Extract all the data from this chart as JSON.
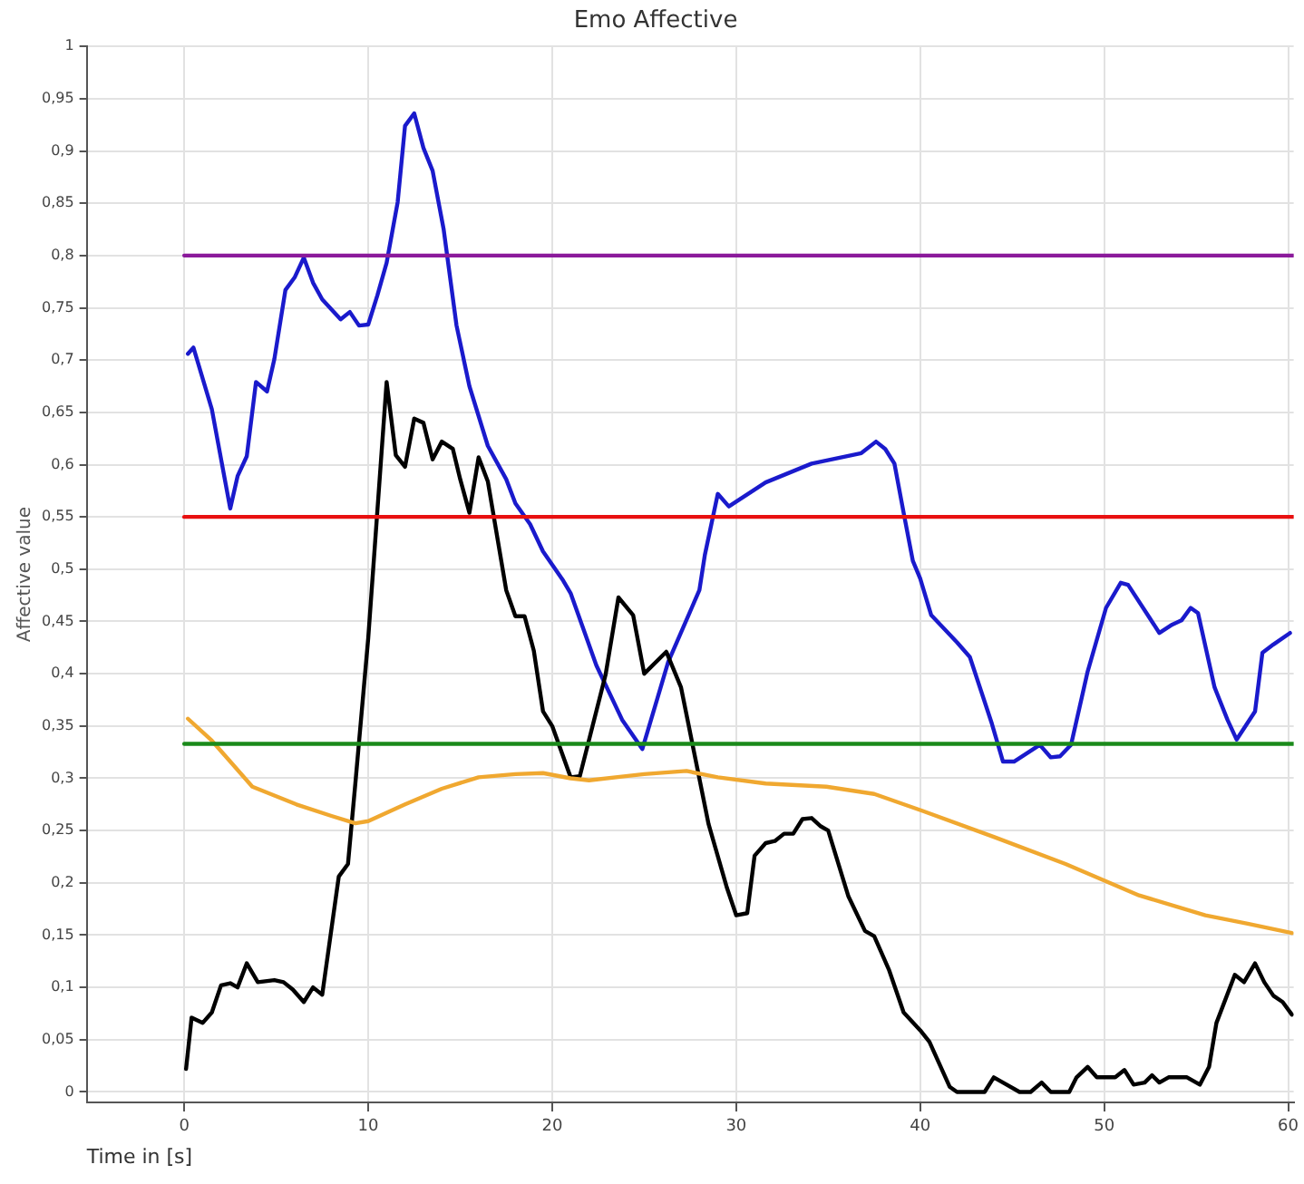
{
  "chart_data": {
    "type": "line",
    "title": "Emo Affective",
    "xlabel": "Time in [s]",
    "ylabel": "Affective value",
    "xlim": [
      -5.3,
      60.3
    ],
    "xticks": [
      0,
      10,
      20,
      30,
      40,
      50,
      60
    ],
    "ylim": [
      -0.01,
      1
    ],
    "yticks": [
      0,
      {
        "value": 0.05,
        "label": "0,05"
      },
      {
        "value": 0.1,
        "label": "0,1"
      },
      {
        "value": 0.15,
        "label": "0,15"
      },
      {
        "value": 0.2,
        "label": "0,2"
      },
      {
        "value": 0.25,
        "label": "0,25"
      },
      {
        "value": 0.3,
        "label": "0,3"
      },
      {
        "value": 0.35,
        "label": "0,35"
      },
      {
        "value": 0.4,
        "label": "0,4"
      },
      {
        "value": 0.45,
        "label": "0,45"
      },
      {
        "value": 0.5,
        "label": "0,5"
      },
      {
        "value": 0.55,
        "label": "0,55"
      },
      {
        "value": 0.6,
        "label": "0,6"
      },
      {
        "value": 0.65,
        "label": "0,65"
      },
      {
        "value": 0.7,
        "label": "0,7"
      },
      {
        "value": 0.75,
        "label": "0,75"
      },
      {
        "value": 0.8,
        "label": "0,8"
      },
      {
        "value": 0.85,
        "label": "0,85"
      },
      {
        "value": 0.9,
        "label": "0,9"
      },
      {
        "value": 0.95,
        "label": "0,95"
      },
      1
    ],
    "grid": true,
    "legend": false,
    "marker": "none",
    "line_style": "solid",
    "series": [
      {
        "color": "#8b1a9b",
        "x": [
          0,
          60.3
        ],
        "values": [
          0.8,
          0.8
        ]
      },
      {
        "color": "#e81010",
        "x": [
          0,
          60.3
        ],
        "values": [
          0.55,
          0.55
        ]
      },
      {
        "color": "#1a8a1a",
        "x": [
          0,
          60.3
        ],
        "values": [
          0.333,
          0.333
        ]
      },
      {
        "color": "#f0a830",
        "x": [
          0.2,
          1.5,
          3.7,
          6.1,
          8.0,
          9.3,
          10.0,
          12,
          14,
          16,
          18,
          19.5,
          21,
          22,
          24,
          25,
          27.3,
          29.0,
          31.6,
          34.9,
          37.5,
          40.1,
          44.0,
          47.9,
          51.9,
          55.5,
          57.8,
          60.2
        ],
        "values": [
          0.357,
          0.336,
          0.292,
          0.275,
          0.264,
          0.257,
          0.259,
          0.275,
          0.29,
          0.301,
          0.304,
          0.305,
          0.3,
          0.298,
          0.302,
          0.304,
          0.307,
          0.301,
          0.295,
          0.292,
          0.285,
          0.269,
          0.244,
          0.218,
          0.188,
          0.169,
          0.161,
          0.152
        ]
      },
      {
        "color": "#000000",
        "x": [
          0.1,
          0.4,
          1.0,
          1.5,
          2.0,
          2.5,
          2.9,
          3.4,
          4.0,
          4.9,
          5.4,
          5.9,
          6.5,
          7.0,
          7.5,
          8.4,
          8.9,
          9.3,
          10.0,
          11.0,
          11.5,
          12.0,
          12.5,
          13.0,
          13.5,
          14.0,
          14.6,
          15.0,
          15.5,
          16.0,
          16.5,
          17.5,
          18.0,
          18.5,
          19.0,
          19.5,
          20.0,
          21.0,
          21.5,
          22.9,
          23.6,
          24.4,
          25.0,
          26.2,
          27.0,
          28.5,
          29.5,
          30.0,
          30.6,
          31.0,
          31.6,
          32.1,
          32.6,
          33.1,
          33.6,
          34.1,
          34.6,
          35.0,
          36.1,
          37.0,
          37.5,
          38.3,
          39.1,
          40.0,
          40.5,
          41.6,
          42.0,
          43.5,
          44.0,
          44.5,
          45.4,
          46.0,
          46.6,
          47.1,
          48.1,
          48.5,
          49.1,
          49.6,
          50.6,
          51.1,
          51.6,
          52.2,
          52.6,
          53.0,
          53.5,
          54.5,
          55.2,
          55.7,
          56.1,
          57.1,
          57.6,
          58.2,
          58.7,
          59.2,
          59.7,
          60.2
        ],
        "values": [
          0.022,
          0.071,
          0.066,
          0.076,
          0.102,
          0.104,
          0.1,
          0.123,
          0.105,
          0.107,
          0.105,
          0.098,
          0.086,
          0.1,
          0.093,
          0.206,
          0.218,
          0.295,
          0.434,
          0.679,
          0.609,
          0.598,
          0.644,
          0.64,
          0.605,
          0.622,
          0.615,
          0.586,
          0.554,
          0.607,
          0.584,
          0.48,
          0.455,
          0.455,
          0.422,
          0.364,
          0.35,
          0.301,
          0.302,
          0.399,
          0.473,
          0.456,
          0.4,
          0.421,
          0.387,
          0.256,
          0.195,
          0.169,
          0.171,
          0.226,
          0.238,
          0.24,
          0.247,
          0.247,
          0.261,
          0.262,
          0.254,
          0.25,
          0.187,
          0.154,
          0.149,
          0.117,
          0.076,
          0.059,
          0.048,
          0.005,
          0,
          0,
          0.014,
          0.009,
          0,
          0,
          0.009,
          0,
          0,
          0.014,
          0.024,
          0.014,
          0.014,
          0.021,
          0.007,
          0.009,
          0.016,
          0.009,
          0.014,
          0.014,
          0.007,
          0.024,
          0.066,
          0.112,
          0.105,
          0.123,
          0.105,
          0.092,
          0.086,
          0.074
        ]
      },
      {
        "color": "#1a1acc",
        "x": [
          0.2,
          0.5,
          1.5,
          2.5,
          2.9,
          3.4,
          3.9,
          4.5,
          4.9,
          5.5,
          6.0,
          6.5,
          7.0,
          7.5,
          8.5,
          9.0,
          9.5,
          10.0,
          10.5,
          11.0,
          11.6,
          12.0,
          12.5,
          13.0,
          13.5,
          14.1,
          14.8,
          15.5,
          16.5,
          17.5,
          18.0,
          18.8,
          19.5,
          20.6,
          21.0,
          22.4,
          23.8,
          24.9,
          26.3,
          28.0,
          28.3,
          29.0,
          29.6,
          31.6,
          34.1,
          36.8,
          37.6,
          38.1,
          38.6,
          39.1,
          39.6,
          40.0,
          40.6,
          42.0,
          42.7,
          43.9,
          44.5,
          45.1,
          46.5,
          47.1,
          47.6,
          48.2,
          49.1,
          50.1,
          50.9,
          51.3,
          53.0,
          53.7,
          54.2,
          54.7,
          55.1,
          56.0,
          56.7,
          57.2,
          58.2,
          58.6,
          59.2,
          60.1
        ],
        "values": [
          0.706,
          0.712,
          0.653,
          0.558,
          0.589,
          0.608,
          0.679,
          0.67,
          0.701,
          0.767,
          0.779,
          0.798,
          0.774,
          0.758,
          0.739,
          0.746,
          0.733,
          0.734,
          0.762,
          0.793,
          0.851,
          0.924,
          0.936,
          0.903,
          0.881,
          0.825,
          0.733,
          0.675,
          0.618,
          0.586,
          0.563,
          0.543,
          0.517,
          0.489,
          0.477,
          0.408,
          0.356,
          0.328,
          0.411,
          0.48,
          0.514,
          0.572,
          0.56,
          0.583,
          0.601,
          0.611,
          0.622,
          0.615,
          0.601,
          0.554,
          0.508,
          0.491,
          0.456,
          0.43,
          0.416,
          0.352,
          0.316,
          0.316,
          0.332,
          0.32,
          0.321,
          0.332,
          0.402,
          0.463,
          0.487,
          0.485,
          0.439,
          0.447,
          0.451,
          0.463,
          0.458,
          0.387,
          0.356,
          0.337,
          0.364,
          0.42,
          0.428,
          0.439
        ]
      }
    ]
  }
}
